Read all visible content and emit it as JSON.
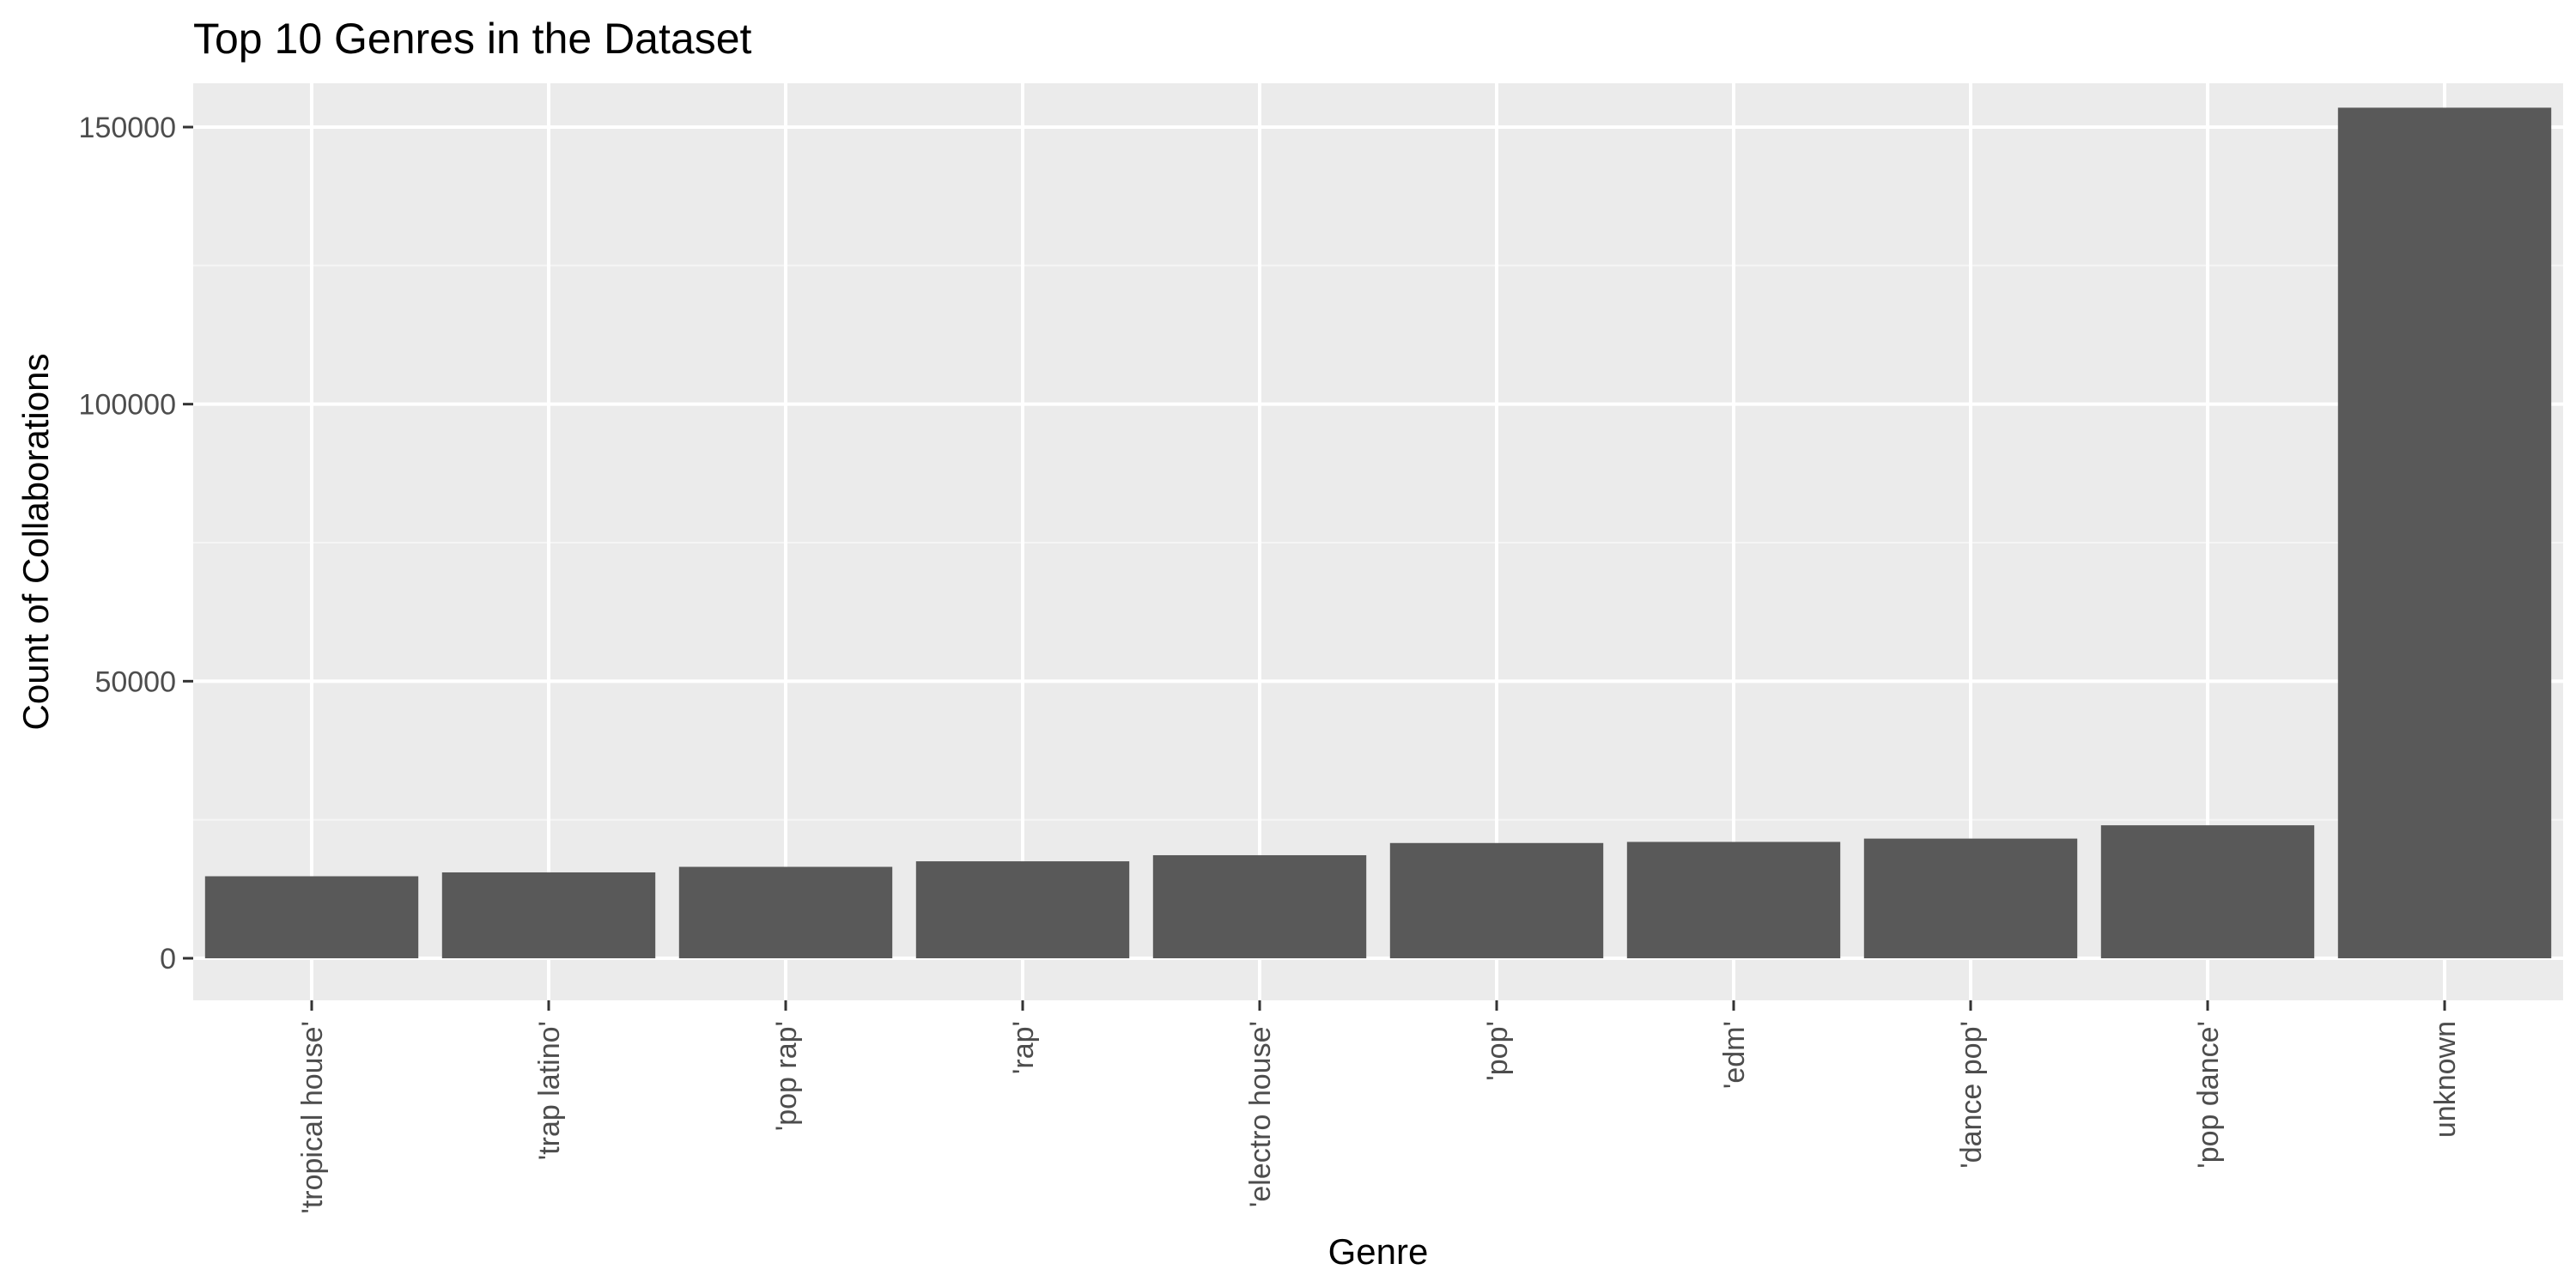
{
  "chart_data": {
    "type": "bar",
    "title": "Top 10 Genres in the Dataset",
    "xlabel": "Genre",
    "ylabel": "Count of Collaborations",
    "categories": [
      "'tropical house'",
      "'trap latino'",
      "'pop rap'",
      "'rap'",
      "'electro house'",
      "'pop'",
      "'edm'",
      "'dance pop'",
      "'pop dance'",
      "unknown"
    ],
    "values": [
      14800,
      15500,
      16500,
      17500,
      18600,
      20800,
      21000,
      21600,
      24000,
      153500
    ],
    "ylim": [
      0,
      162000
    ],
    "yticks": [
      0,
      50000,
      100000,
      150000
    ],
    "ytick_labels": [
      "0",
      "50000",
      "100000",
      "150000"
    ],
    "grid": true,
    "colors": {
      "panel": "#ebebeb",
      "grid_major": "#ffffff",
      "bar": "#595959",
      "tick": "#333333"
    }
  }
}
